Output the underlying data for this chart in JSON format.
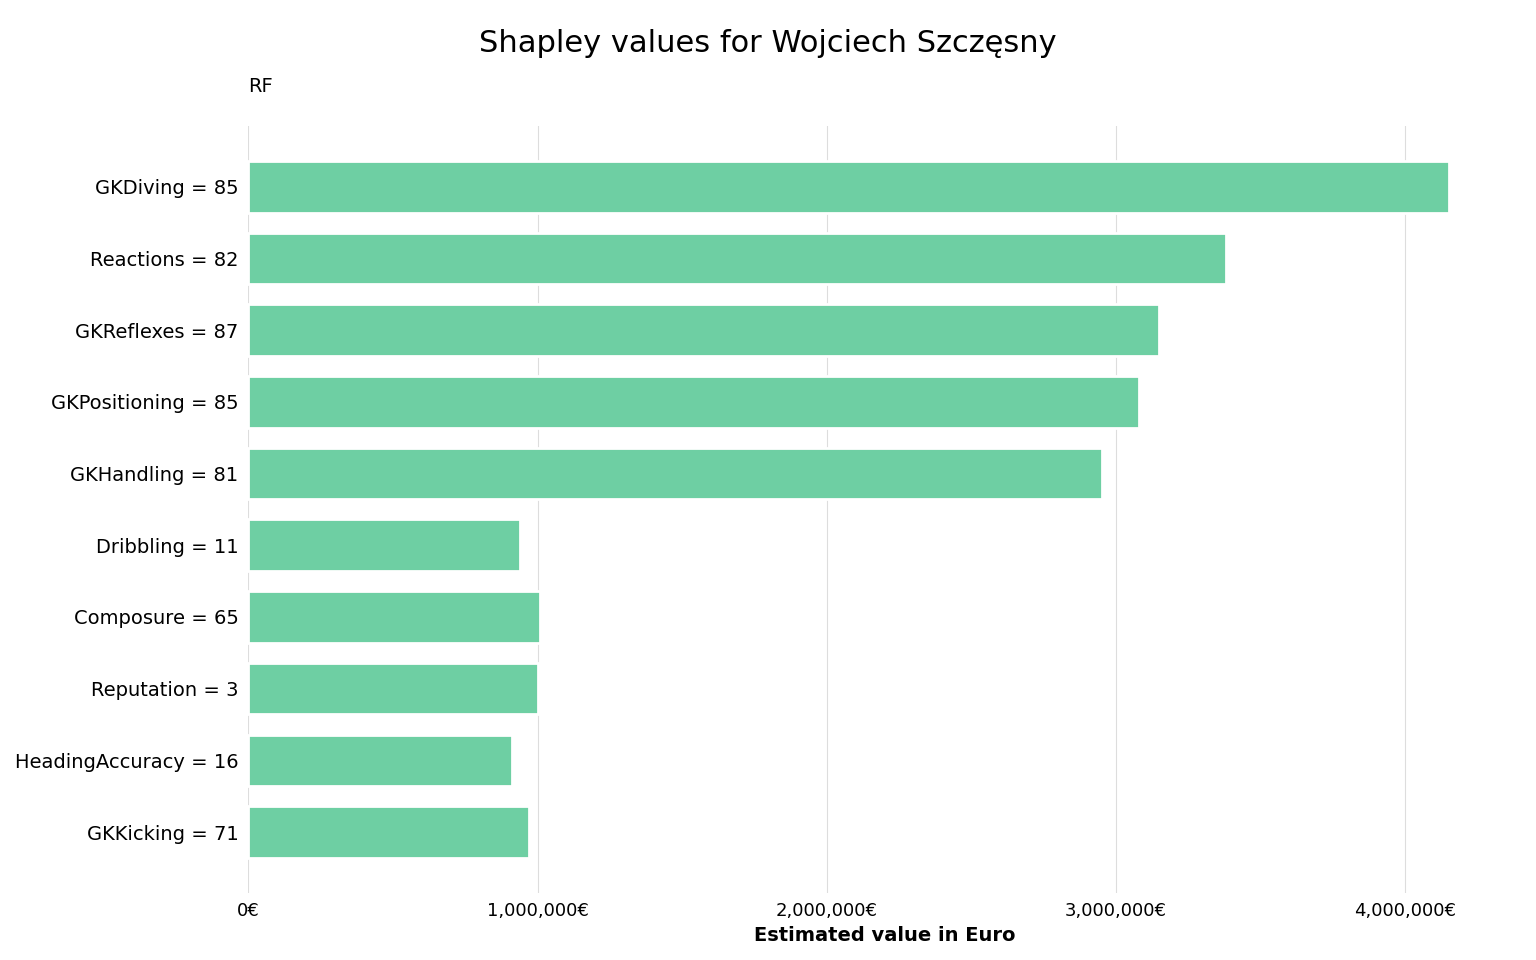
{
  "title": "Shapley values for Wojciech Szczęsny",
  "subtitle": "RF",
  "xlabel": "Estimated value in Euro",
  "categories": [
    "GKDiving = 85",
    "Reactions = 82",
    "GKReflexes = 87",
    "GKPositioning = 85",
    "GKHandling = 81",
    "Dribbling = 11",
    "Composure = 65",
    "Reputation = 3",
    "HeadingAccuracy = 16",
    "GKKicking = 71"
  ],
  "values": [
    4150000,
    3380000,
    3150000,
    3080000,
    2950000,
    940000,
    1010000,
    1000000,
    910000,
    970000
  ],
  "bar_color": "#6ECFA3",
  "background_color": "#ffffff",
  "xlim": [
    0,
    4400000
  ],
  "title_fontsize": 22,
  "subtitle_fontsize": 14,
  "label_fontsize": 14,
  "tick_fontsize": 13,
  "xlabel_fontsize": 14
}
